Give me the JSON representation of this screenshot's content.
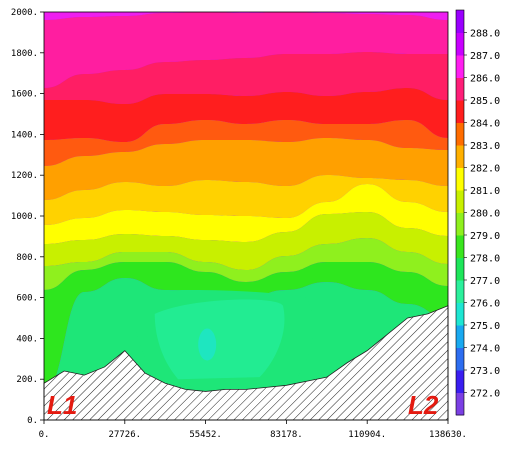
{
  "chart_data": {
    "type": "heatmap",
    "xlim": [
      0,
      138630
    ],
    "ylim": [
      0,
      2000
    ],
    "x_ticks": [
      "0.",
      "27726.",
      "55452.",
      "83178.",
      "110904.",
      "138630."
    ],
    "x_tick_values": [
      0,
      27726,
      55452,
      83178,
      110904,
      138630
    ],
    "y_ticks": [
      "0.",
      "200.",
      "400.",
      "600.",
      "800.",
      "1000.",
      "1200.",
      "1400.",
      "1600.",
      "1800.",
      "2000."
    ],
    "y_tick_values": [
      0,
      200,
      400,
      600,
      800,
      1000,
      1200,
      1400,
      1600,
      1800,
      2000
    ],
    "colorbar": {
      "labels": [
        "272.0",
        "273.0",
        "274.0",
        "275.0",
        "276.0",
        "277.0",
        "278.0",
        "279.0",
        "280.0",
        "281.0",
        "282.0",
        "283.0",
        "284.0",
        "285.0",
        "286.0",
        "287.0",
        "288.0"
      ],
      "colors": [
        "#7b3fe4",
        "#3a1ef0",
        "#2d6df0",
        "#19a9f0",
        "#1ee6d2",
        "#2bf09c",
        "#1ee65a",
        "#3ae61e",
        "#8ff01e",
        "#c8f000",
        "#ffff00",
        "#ffb000",
        "#ff6c00",
        "#ff1e1e",
        "#ff1e78",
        "#ff1ef0",
        "#c800ff",
        "#9a00ff"
      ]
    },
    "bands": [
      {
        "level": "above 288",
        "color": "#9a2bff"
      },
      {
        "level": "287-288",
        "color": "#ee1ef0"
      },
      {
        "level": "286-287",
        "color": "#ff1ea0"
      },
      {
        "level": "285-286",
        "color": "#ff1e64"
      },
      {
        "level": "284-285",
        "color": "#ff1e1e"
      },
      {
        "level": "283-284",
        "color": "#ff5a10"
      },
      {
        "level": "282-283",
        "color": "#ffa000"
      },
      {
        "level": "281-282",
        "color": "#ffd200"
      },
      {
        "level": "280-281",
        "color": "#ffff00"
      },
      {
        "level": "279-280",
        "color": "#c8f000"
      },
      {
        "level": "278-279",
        "color": "#8ff01e"
      },
      {
        "level": "277-278",
        "color": "#2ee61e"
      },
      {
        "level": "276-277",
        "color": "#1ee678"
      },
      {
        "level": "275-276",
        "color": "#1ee6c0"
      }
    ],
    "terrain_profile": {
      "x": [
        0,
        6931,
        13863,
        20794,
        27726,
        34657,
        41589,
        48520,
        55452,
        62383,
        69315,
        76246,
        83178,
        90109,
        97041,
        103972,
        110904,
        117835,
        124767,
        131698,
        138630
      ],
      "y": [
        180,
        240,
        220,
        260,
        340,
        230,
        180,
        150,
        140,
        150,
        150,
        160,
        170,
        190,
        210,
        280,
        340,
        420,
        500,
        520,
        560
      ]
    },
    "annotations": [
      "L1",
      "L2"
    ]
  }
}
